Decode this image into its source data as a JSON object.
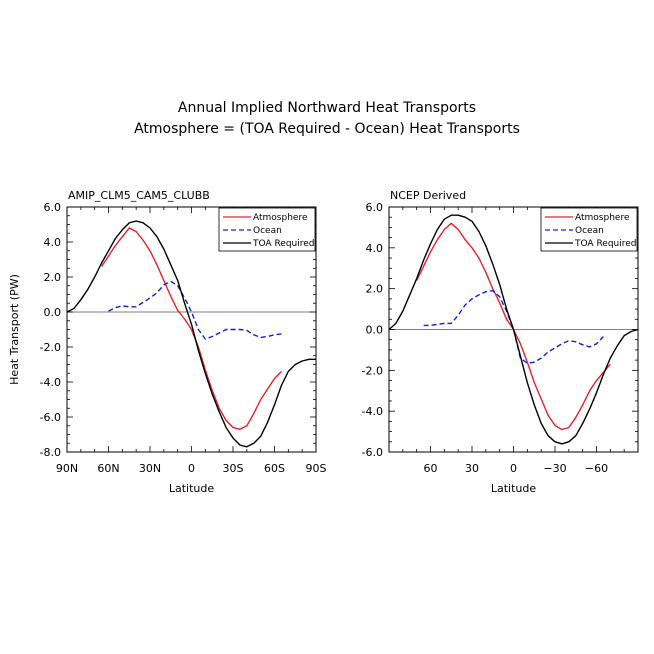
{
  "title_line1": "Annual Implied Northward Heat Transports",
  "title_line2": "Atmosphere = (TOA Required - Ocean) Heat Transports",
  "chart_data": [
    {
      "type": "line",
      "panel_title": "AMIP_CLM5_CAM5_CLUBB",
      "xlabel": "Latitude",
      "ylabel": "Heat Transport (PW)",
      "xlim": [
        90,
        -90
      ],
      "ylim": [
        -8,
        6
      ],
      "x_ticks": [
        90,
        60,
        30,
        0,
        -30,
        -60,
        -90
      ],
      "x_tick_labels": [
        "90N",
        "60N",
        "30N",
        "0",
        "30S",
        "60S",
        "90S"
      ],
      "y_ticks": [
        6,
        4,
        2,
        0,
        -2,
        -4,
        -6,
        -8
      ],
      "y_tick_labels": [
        "6.0",
        "4.0",
        "2.0",
        "0.0",
        "-2.0",
        "-4.0",
        "-6.0",
        "-8.0"
      ],
      "legend_position": "top-right",
      "series": [
        {
          "name": "Atmosphere",
          "color": "#e8202a",
          "dash": "solid",
          "x": [
            65,
            60,
            55,
            50,
            45,
            40,
            35,
            30,
            25,
            20,
            15,
            10,
            5,
            0,
            -5,
            -10,
            -15,
            -20,
            -25,
            -30,
            -35,
            -40,
            -45,
            -50,
            -55,
            -60,
            -65
          ],
          "y": [
            2.6,
            3.2,
            3.8,
            4.3,
            4.8,
            4.6,
            4.1,
            3.5,
            2.7,
            1.8,
            0.9,
            0.1,
            -0.4,
            -1.0,
            -2.0,
            -3.3,
            -4.5,
            -5.5,
            -6.2,
            -6.6,
            -6.7,
            -6.5,
            -5.8,
            -5.0,
            -4.4,
            -3.8,
            -3.4
          ]
        },
        {
          "name": "Ocean",
          "color": "#1020e0",
          "dash": "dashed",
          "x": [
            60,
            55,
            50,
            45,
            40,
            35,
            30,
            25,
            20,
            15,
            10,
            5,
            0,
            -5,
            -10,
            -15,
            -20,
            -25,
            -30,
            -35,
            -40,
            -45,
            -50,
            -55,
            -60,
            -65
          ],
          "y": [
            0.05,
            0.25,
            0.35,
            0.3,
            0.3,
            0.55,
            0.8,
            1.1,
            1.55,
            1.75,
            1.5,
            0.8,
            0.0,
            -1.0,
            -1.55,
            -1.4,
            -1.2,
            -1.0,
            -1.0,
            -1.0,
            -1.05,
            -1.3,
            -1.45,
            -1.4,
            -1.3,
            -1.25
          ]
        },
        {
          "name": "TOA Required",
          "color": "#000000",
          "dash": "solid",
          "x": [
            90,
            85,
            80,
            75,
            70,
            65,
            60,
            55,
            50,
            45,
            40,
            35,
            30,
            25,
            20,
            15,
            10,
            5,
            0,
            -5,
            -10,
            -15,
            -20,
            -25,
            -30,
            -35,
            -40,
            -45,
            -50,
            -55,
            -60,
            -65,
            -70,
            -75,
            -80,
            -85,
            -90
          ],
          "y": [
            0.0,
            0.2,
            0.7,
            1.3,
            2.0,
            2.8,
            3.5,
            4.2,
            4.7,
            5.1,
            5.2,
            5.1,
            4.8,
            4.3,
            3.6,
            2.7,
            1.8,
            0.5,
            -0.7,
            -2.2,
            -3.5,
            -4.7,
            -5.7,
            -6.6,
            -7.2,
            -7.6,
            -7.7,
            -7.5,
            -7.1,
            -6.3,
            -5.3,
            -4.2,
            -3.4,
            -3.0,
            -2.8,
            -2.7,
            -2.7
          ]
        }
      ]
    },
    {
      "type": "line",
      "panel_title": "NCEP Derived",
      "xlabel": "Latitude",
      "ylabel": "",
      "xlim": [
        90,
        -90
      ],
      "ylim": [
        -6,
        6
      ],
      "x_ticks": [
        60,
        30,
        0,
        -30,
        -60
      ],
      "x_tick_labels": [
        "60",
        "30",
        "0",
        "−30",
        "−60"
      ],
      "y_ticks": [
        6,
        4,
        2,
        0,
        -2,
        -4,
        -6
      ],
      "y_tick_labels": [
        "6.0",
        "4.0",
        "2.0",
        "0.0",
        "-2.0",
        "-4.0",
        "-6.0"
      ],
      "legend_position": "top-right",
      "series": [
        {
          "name": "Atmosphere",
          "color": "#e8202a",
          "dash": "solid",
          "x": [
            70,
            65,
            60,
            55,
            50,
            45,
            40,
            35,
            30,
            25,
            20,
            15,
            10,
            5,
            0,
            -5,
            -10,
            -15,
            -20,
            -25,
            -30,
            -35,
            -40,
            -45,
            -50,
            -55,
            -60,
            -65,
            -70
          ],
          "y": [
            2.4,
            3.1,
            3.8,
            4.4,
            4.9,
            5.2,
            4.9,
            4.4,
            4.0,
            3.5,
            2.8,
            2.0,
            1.3,
            0.5,
            0.0,
            -0.7,
            -1.6,
            -2.6,
            -3.4,
            -4.2,
            -4.7,
            -4.9,
            -4.8,
            -4.3,
            -3.7,
            -3.0,
            -2.5,
            -2.1,
            -1.7
          ]
        },
        {
          "name": "Ocean",
          "color": "#1020e0",
          "dash": "dashed",
          "x": [
            65,
            60,
            55,
            50,
            45,
            40,
            35,
            30,
            25,
            20,
            15,
            10,
            5,
            0,
            -5,
            -10,
            -15,
            -20,
            -25,
            -30,
            -35,
            -40,
            -45,
            -50,
            -55,
            -60,
            -65
          ],
          "y": [
            0.2,
            0.2,
            0.25,
            0.3,
            0.3,
            0.7,
            1.2,
            1.5,
            1.7,
            1.85,
            1.9,
            1.6,
            0.9,
            0.0,
            -1.4,
            -1.65,
            -1.6,
            -1.4,
            -1.1,
            -0.9,
            -0.7,
            -0.55,
            -0.6,
            -0.75,
            -0.85,
            -0.7,
            -0.35
          ]
        },
        {
          "name": "TOA Required",
          "color": "#000000",
          "dash": "solid",
          "x": [
            90,
            85,
            80,
            75,
            70,
            65,
            60,
            55,
            50,
            45,
            40,
            35,
            30,
            25,
            20,
            15,
            10,
            5,
            0,
            -5,
            -10,
            -15,
            -20,
            -25,
            -30,
            -35,
            -40,
            -45,
            -50,
            -55,
            -60,
            -65,
            -70,
            -75,
            -80,
            -85,
            -90
          ],
          "y": [
            0.0,
            0.3,
            0.9,
            1.7,
            2.5,
            3.4,
            4.2,
            4.9,
            5.4,
            5.6,
            5.6,
            5.5,
            5.3,
            4.8,
            4.1,
            3.2,
            2.2,
            1.0,
            0.0,
            -1.3,
            -2.6,
            -3.7,
            -4.6,
            -5.2,
            -5.5,
            -5.6,
            -5.5,
            -5.2,
            -4.6,
            -3.9,
            -3.1,
            -2.2,
            -1.4,
            -0.8,
            -0.3,
            -0.1,
            0.0
          ]
        }
      ]
    }
  ]
}
